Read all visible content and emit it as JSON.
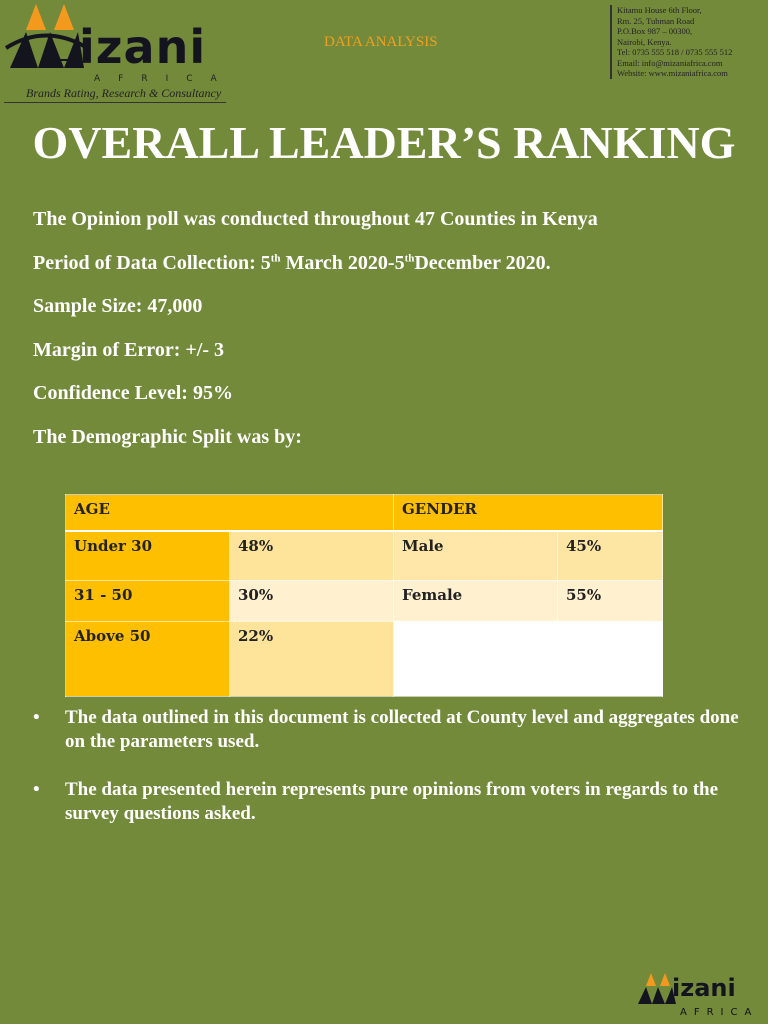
{
  "header": {
    "logo": {
      "word": "izani",
      "sub": "AFRICA",
      "tagline": "Brands Rating, Research & Consultancy"
    },
    "section": "DATA ANALYSIS",
    "contact": [
      "Kitamu House 6th Floor,",
      "Rm. 25, Tubman Road",
      "P.O.Box 987 – 00300,",
      "Nairobi, Kenya.",
      "Tel: 0735 555 518 / 0735 555 512",
      "Email: info@mizaniafrica.com",
      "Website: www.mizaniafrica.com"
    ]
  },
  "title": "OVERALL LEADER’S RANKING",
  "facts": {
    "f1": "The Opinion poll was conducted throughout 47 Counties in Kenya",
    "f2a": "Period of Data Collection: 5",
    "f2sup1": "th",
    "f2b": " March 2020-5",
    "f2sup2": "th",
    "f2c": "December 2020.",
    "f3": "Sample Size: 47,000",
    "f4": "Margin of Error: +/- 3",
    "f5": "Confidence Level: 95%",
    "f6": "The Demographic Split was by:"
  },
  "table": {
    "headers": [
      "AGE",
      "GENDER"
    ],
    "age": [
      {
        "label": "Under 30",
        "value": "48%"
      },
      {
        "label": "31 - 50",
        "value": "30%"
      },
      {
        "label": "Above 50",
        "value": "22%"
      }
    ],
    "gender": [
      {
        "label": "Male",
        "value": "45%"
      },
      {
        "label": "Female",
        "value": "55%"
      }
    ]
  },
  "bullets": [
    "The data outlined in this document is collected at County level and aggregates done on the parameters used.",
    "The data presented herein represents pure opinions from voters in regards to the survey questions asked."
  ],
  "footer_logo": {
    "word": "izani",
    "sub": "AFRICA"
  }
}
